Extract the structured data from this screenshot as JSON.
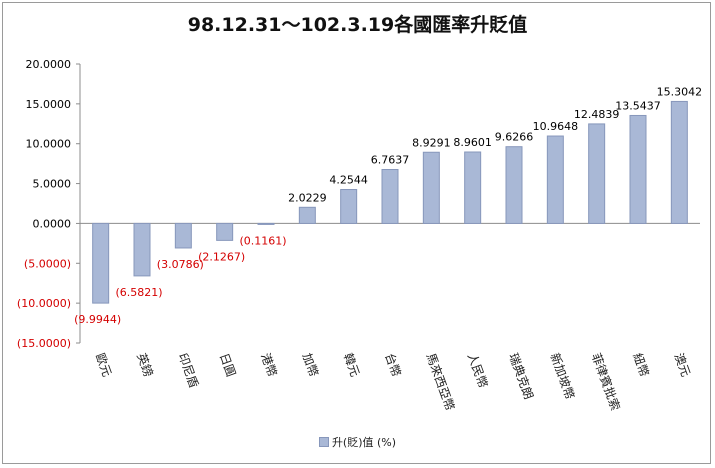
{
  "chart_data": {
    "type": "bar",
    "title": "98.12.31～102.3.19各國匯率升貶值",
    "categories": [
      "歐元",
      "英鎊",
      "印尼盾",
      "日圓",
      "港幣",
      "加幣",
      "韓元",
      "台幣",
      "馬來西亞幣",
      "人民幣",
      "瑞典克朗",
      "新加坡幣",
      "菲律賓批索",
      "紐幣",
      "澳元"
    ],
    "series": [
      {
        "name": "升(貶)值 (%)",
        "values": [
          -9.9944,
          -6.5821,
          -3.0786,
          -2.1267,
          -0.1161,
          2.0229,
          4.2544,
          6.7637,
          8.9291,
          8.9601,
          9.6266,
          10.9648,
          12.4839,
          13.5437,
          15.3042
        ]
      }
    ],
    "data_labels": [
      "(9.9944)",
      "(6.5821)",
      "(3.0786)",
      "(2.1267)",
      "(0.1161)",
      "2.0229",
      "4.2544",
      "6.7637",
      "8.9291",
      "8.9601",
      "9.6266",
      "10.9648",
      "12.4839",
      "13.5437",
      "15.3042"
    ],
    "y_ticks": [
      20,
      15,
      10,
      5,
      0,
      -5,
      -10,
      -15
    ],
    "y_tick_labels": [
      "20.0000",
      "15.0000",
      "10.0000",
      "5.0000",
      "0.0000",
      "(5.0000)",
      "(10.0000)",
      "(15.0000)"
    ],
    "ylim": [
      -15,
      20
    ],
    "grid": false,
    "legend_position": "bottom",
    "colors": {
      "bar_fill": "#a9b8d6",
      "bar_stroke": "#8797bb",
      "negative_text": "#d40000",
      "positive_text": "#000000"
    }
  }
}
